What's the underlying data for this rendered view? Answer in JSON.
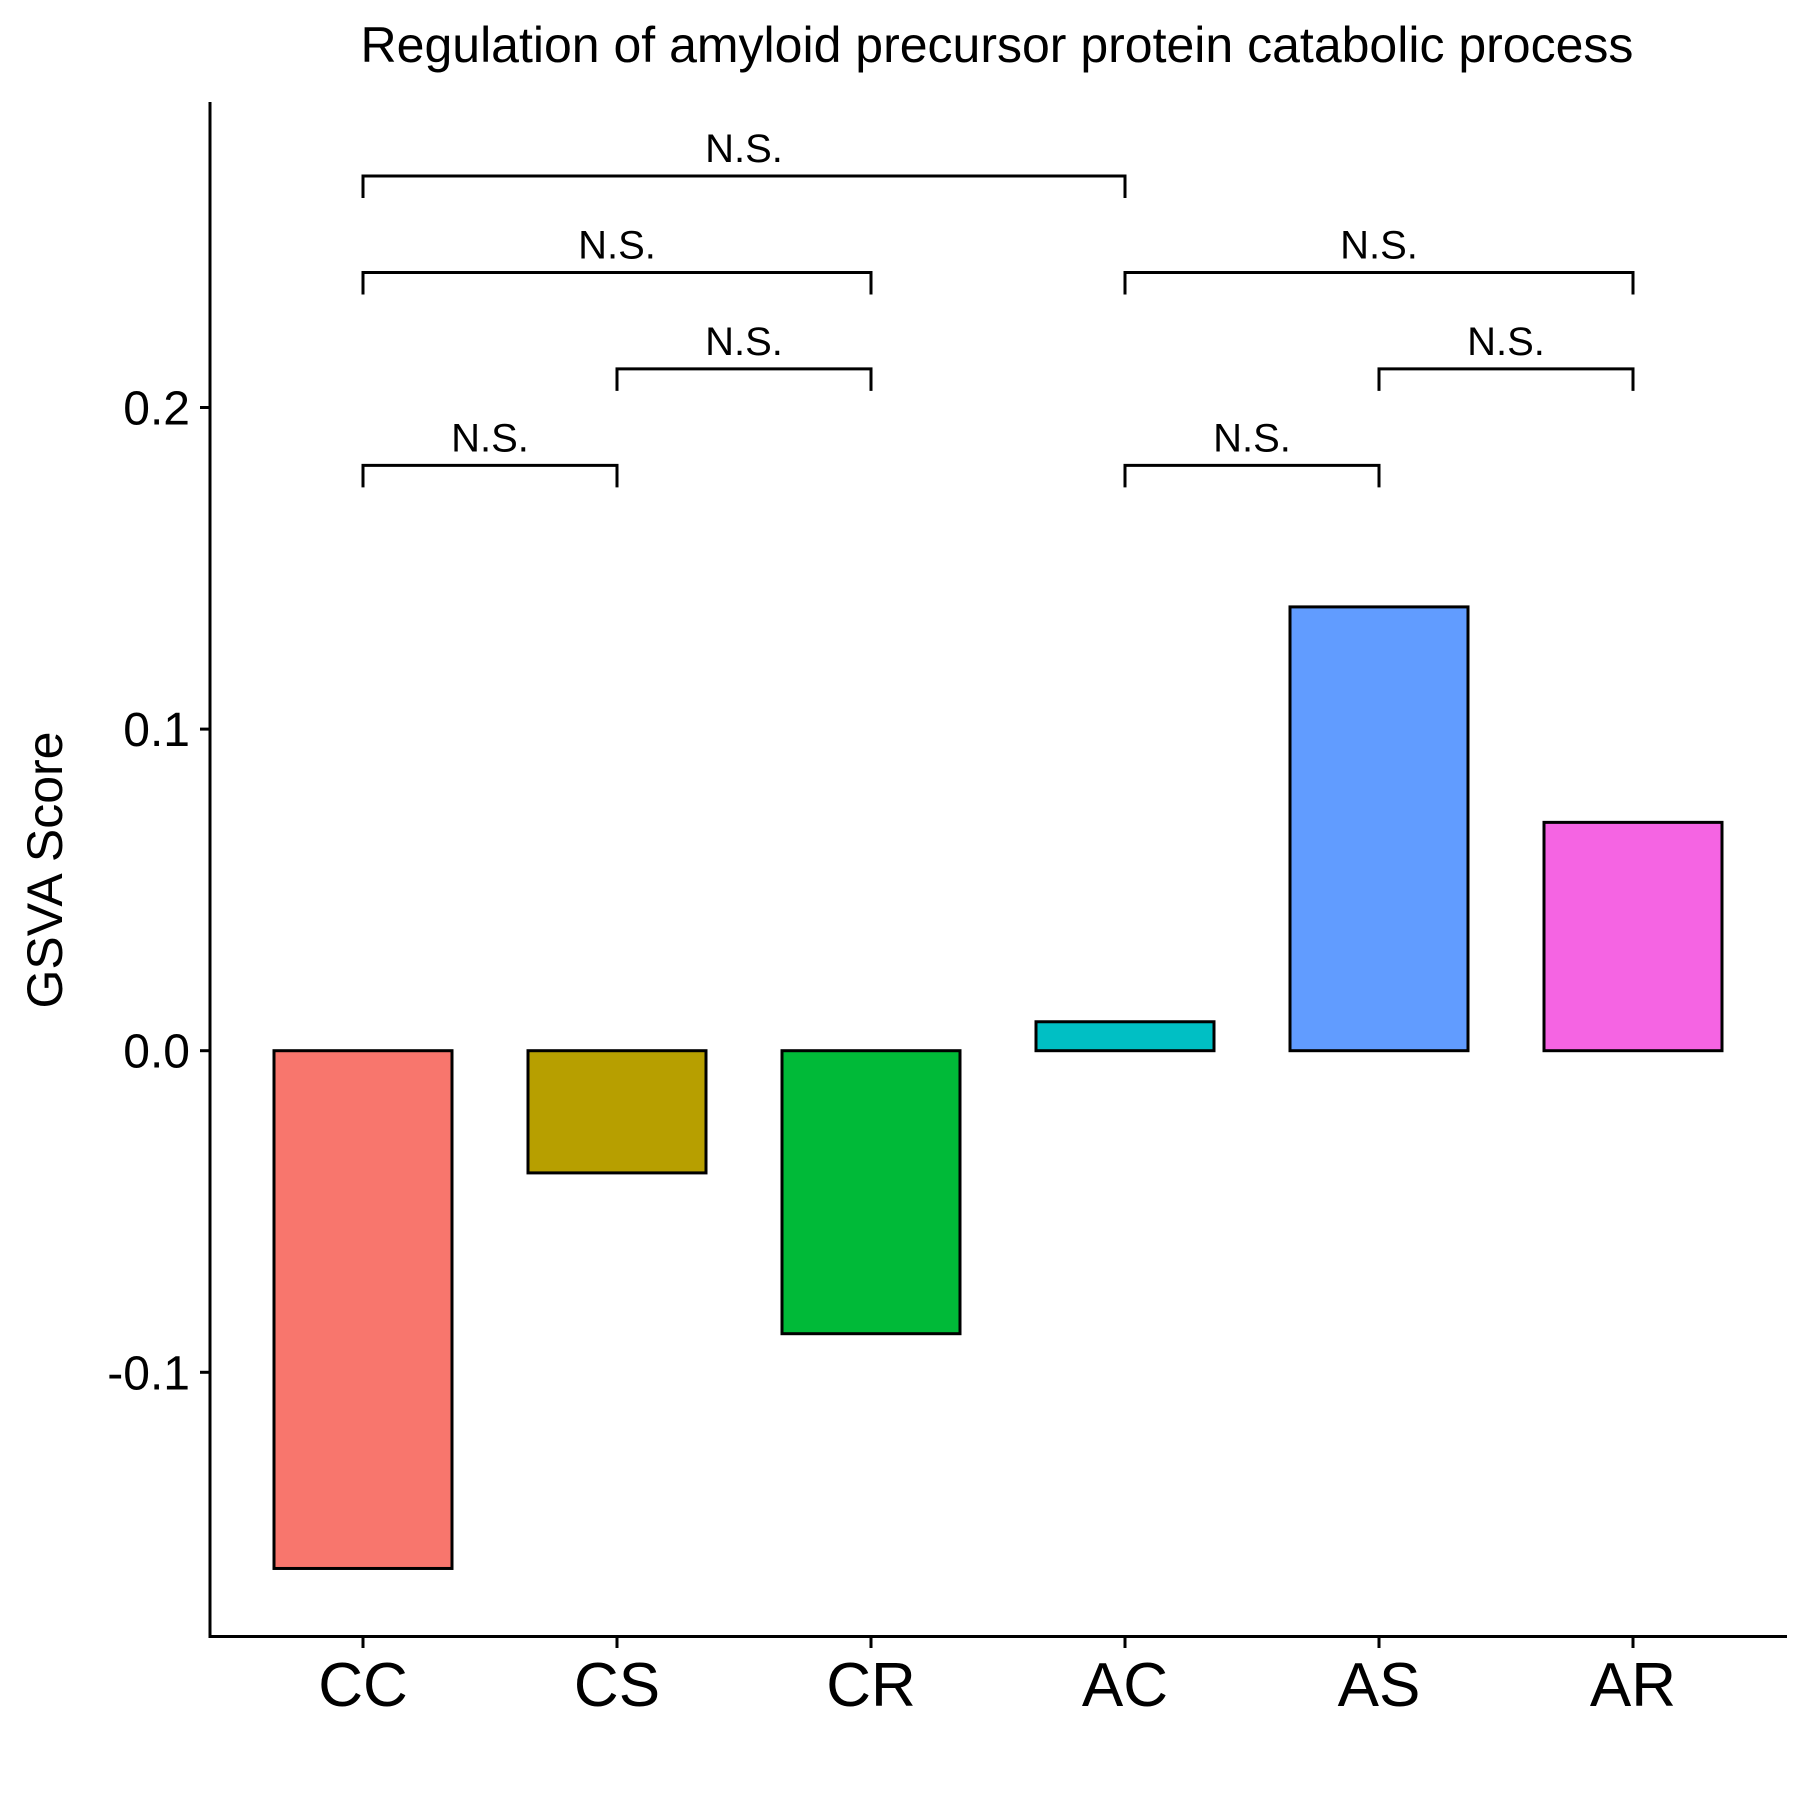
{
  "chart_data": {
    "type": "bar",
    "title": "Regulation of amyloid precursor protein catabolic process",
    "xlabel": "",
    "ylabel": "GSVA Score",
    "categories": [
      "CC",
      "CS",
      "CR",
      "AC",
      "AS",
      "AR"
    ],
    "values": [
      -0.161,
      -0.038,
      -0.088,
      0.009,
      0.138,
      0.071
    ],
    "colors": [
      "#F8766D",
      "#B79F00",
      "#00BA38",
      "#00BFC4",
      "#619CFF",
      "#F564E3"
    ],
    "ylim": [
      -0.182,
      0.295
    ],
    "yticks": [
      -0.1,
      0.0,
      0.1,
      0.2
    ],
    "ytick_labels": [
      "-0.1",
      "0.0",
      "0.1",
      "0.2"
    ],
    "grid": false,
    "legend": "none",
    "comparisons": [
      {
        "from": "CC",
        "to": "CS",
        "label": "N.S.",
        "y": 0.182
      },
      {
        "from": "CS",
        "to": "CR",
        "label": "N.S.",
        "y": 0.212
      },
      {
        "from": "CC",
        "to": "CR",
        "label": "N.S.",
        "y": 0.242
      },
      {
        "from": "CC",
        "to": "AC",
        "label": "N.S.",
        "y": 0.272
      },
      {
        "from": "AC",
        "to": "AS",
        "label": "N.S.",
        "y": 0.182
      },
      {
        "from": "AS",
        "to": "AR",
        "label": "N.S.",
        "y": 0.212
      },
      {
        "from": "AC",
        "to": "AR",
        "label": "N.S.",
        "y": 0.242
      }
    ]
  }
}
